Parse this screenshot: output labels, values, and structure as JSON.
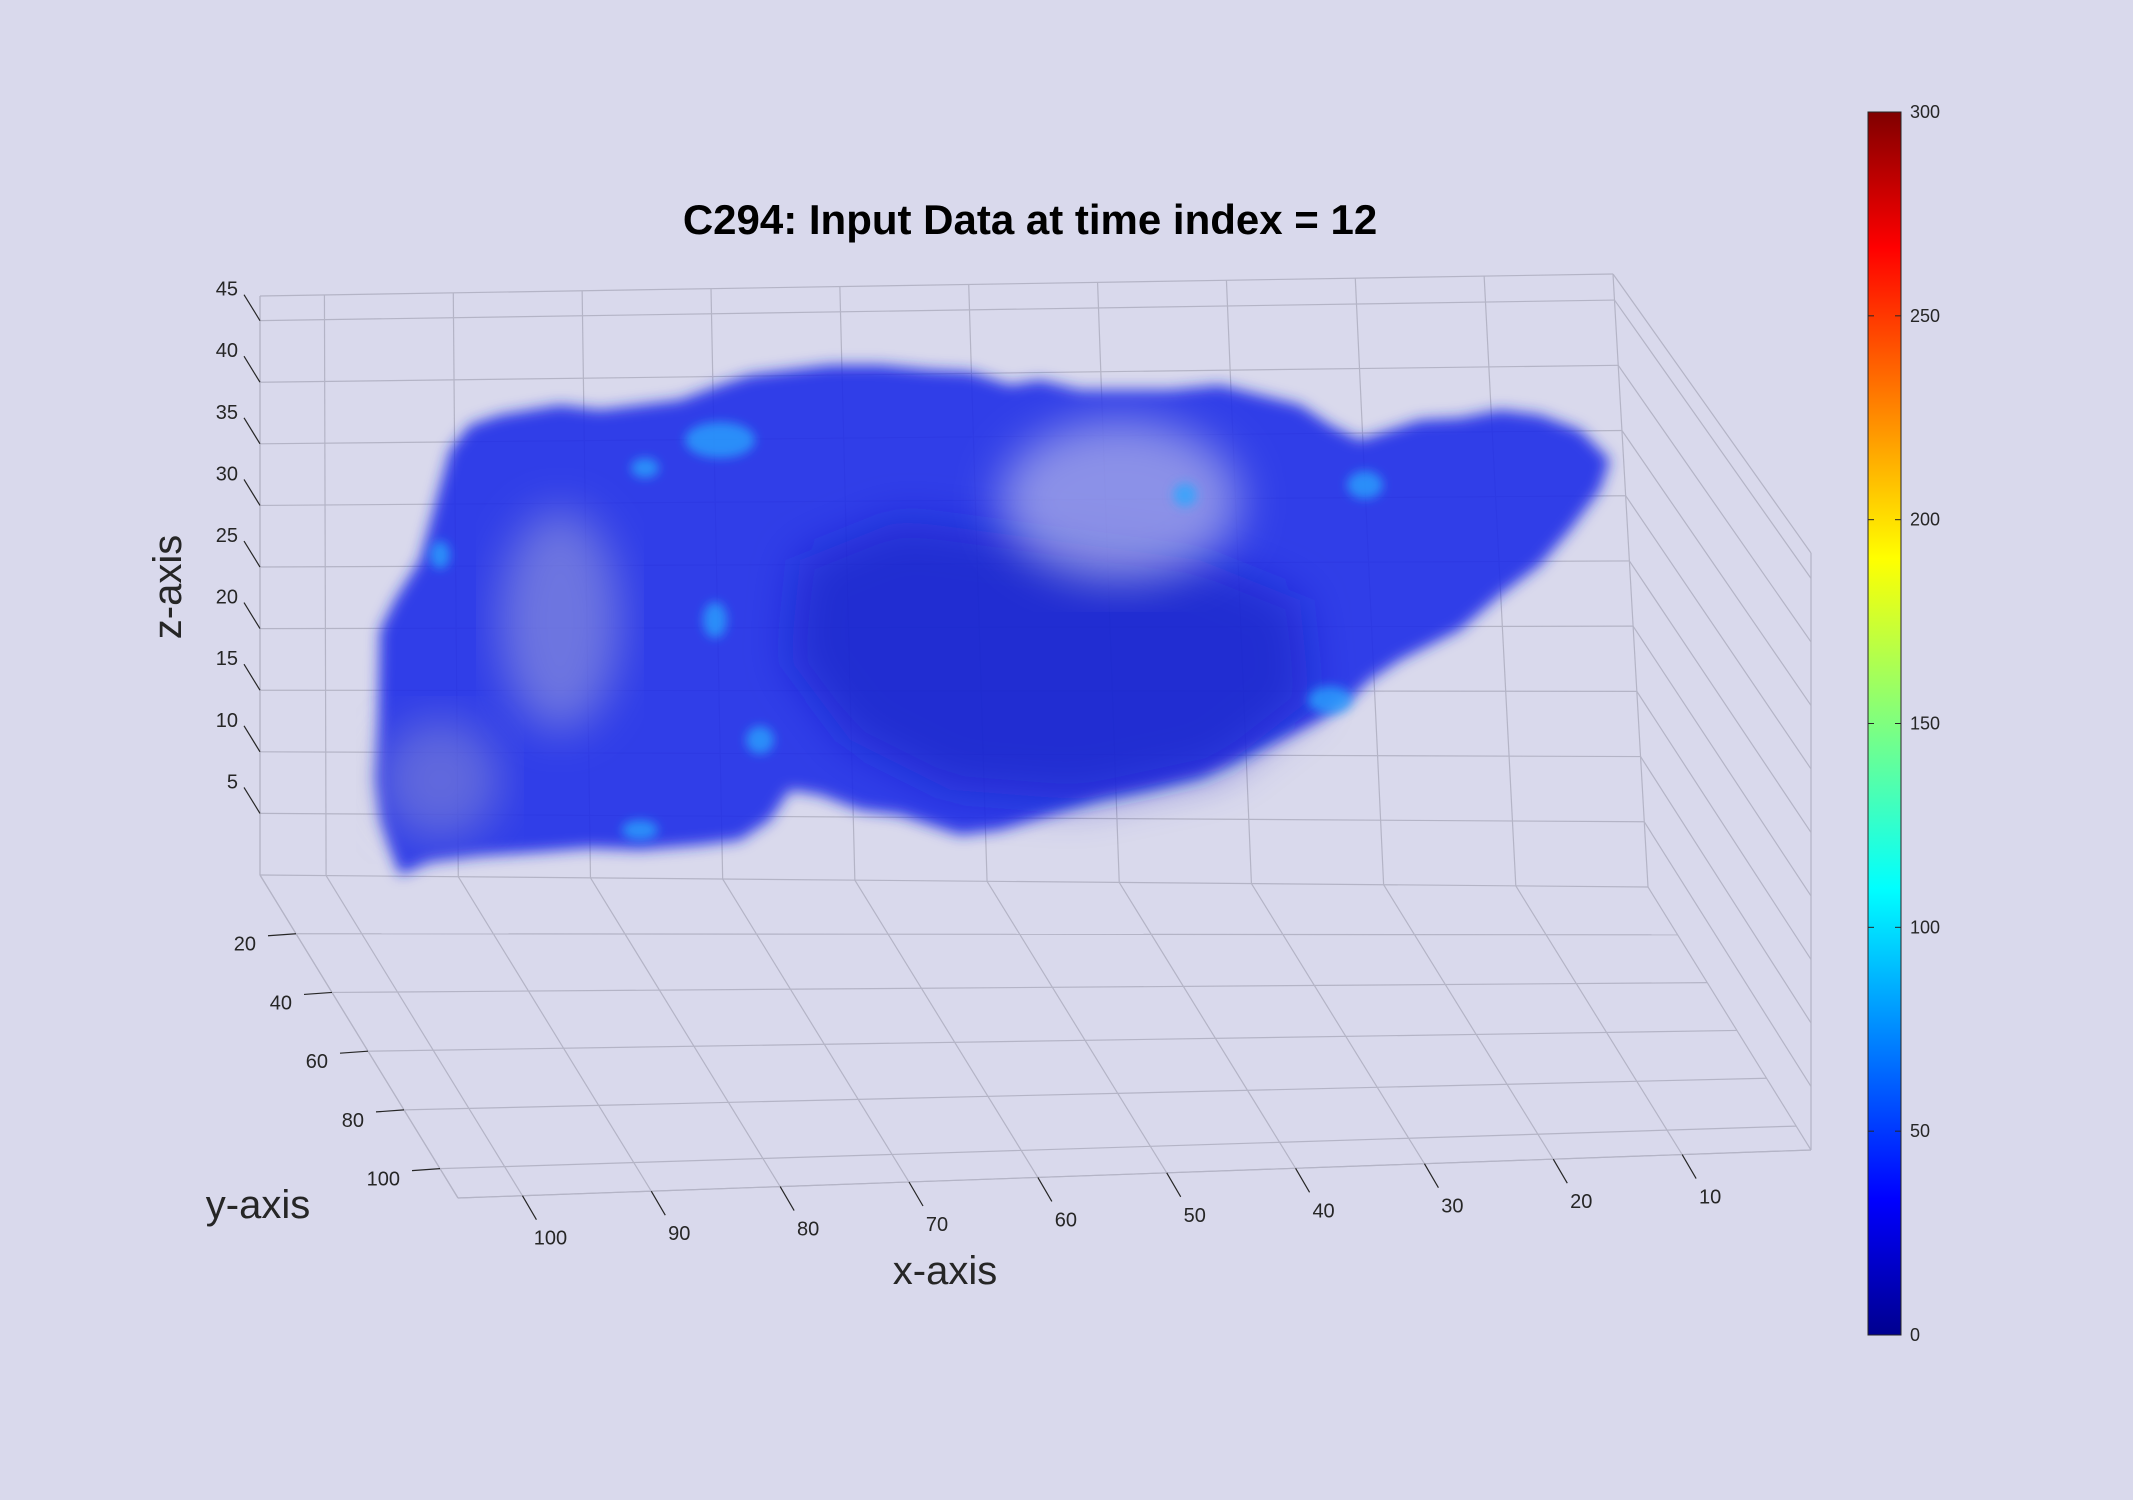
{
  "chart_data": {
    "type": "volume-3d",
    "title": "C294: Input Data at time index = 12",
    "xlabel": "x-axis",
    "ylabel": "y-axis",
    "zlabel": "z-axis",
    "x_ticks": [
      100,
      90,
      80,
      70,
      60,
      50,
      40,
      30,
      20,
      10
    ],
    "y_ticks": [
      20,
      40,
      60,
      80,
      100
    ],
    "z_ticks": [
      5,
      10,
      15,
      20,
      25,
      30,
      35,
      40,
      45
    ],
    "grid": true,
    "colormap": "jet",
    "colorbar": {
      "range": [
        0,
        300
      ],
      "ticks": [
        0,
        50,
        100,
        150,
        200,
        250,
        300
      ]
    },
    "volume_value_range": [
      20,
      110
    ],
    "dominant_value": 40
  }
}
